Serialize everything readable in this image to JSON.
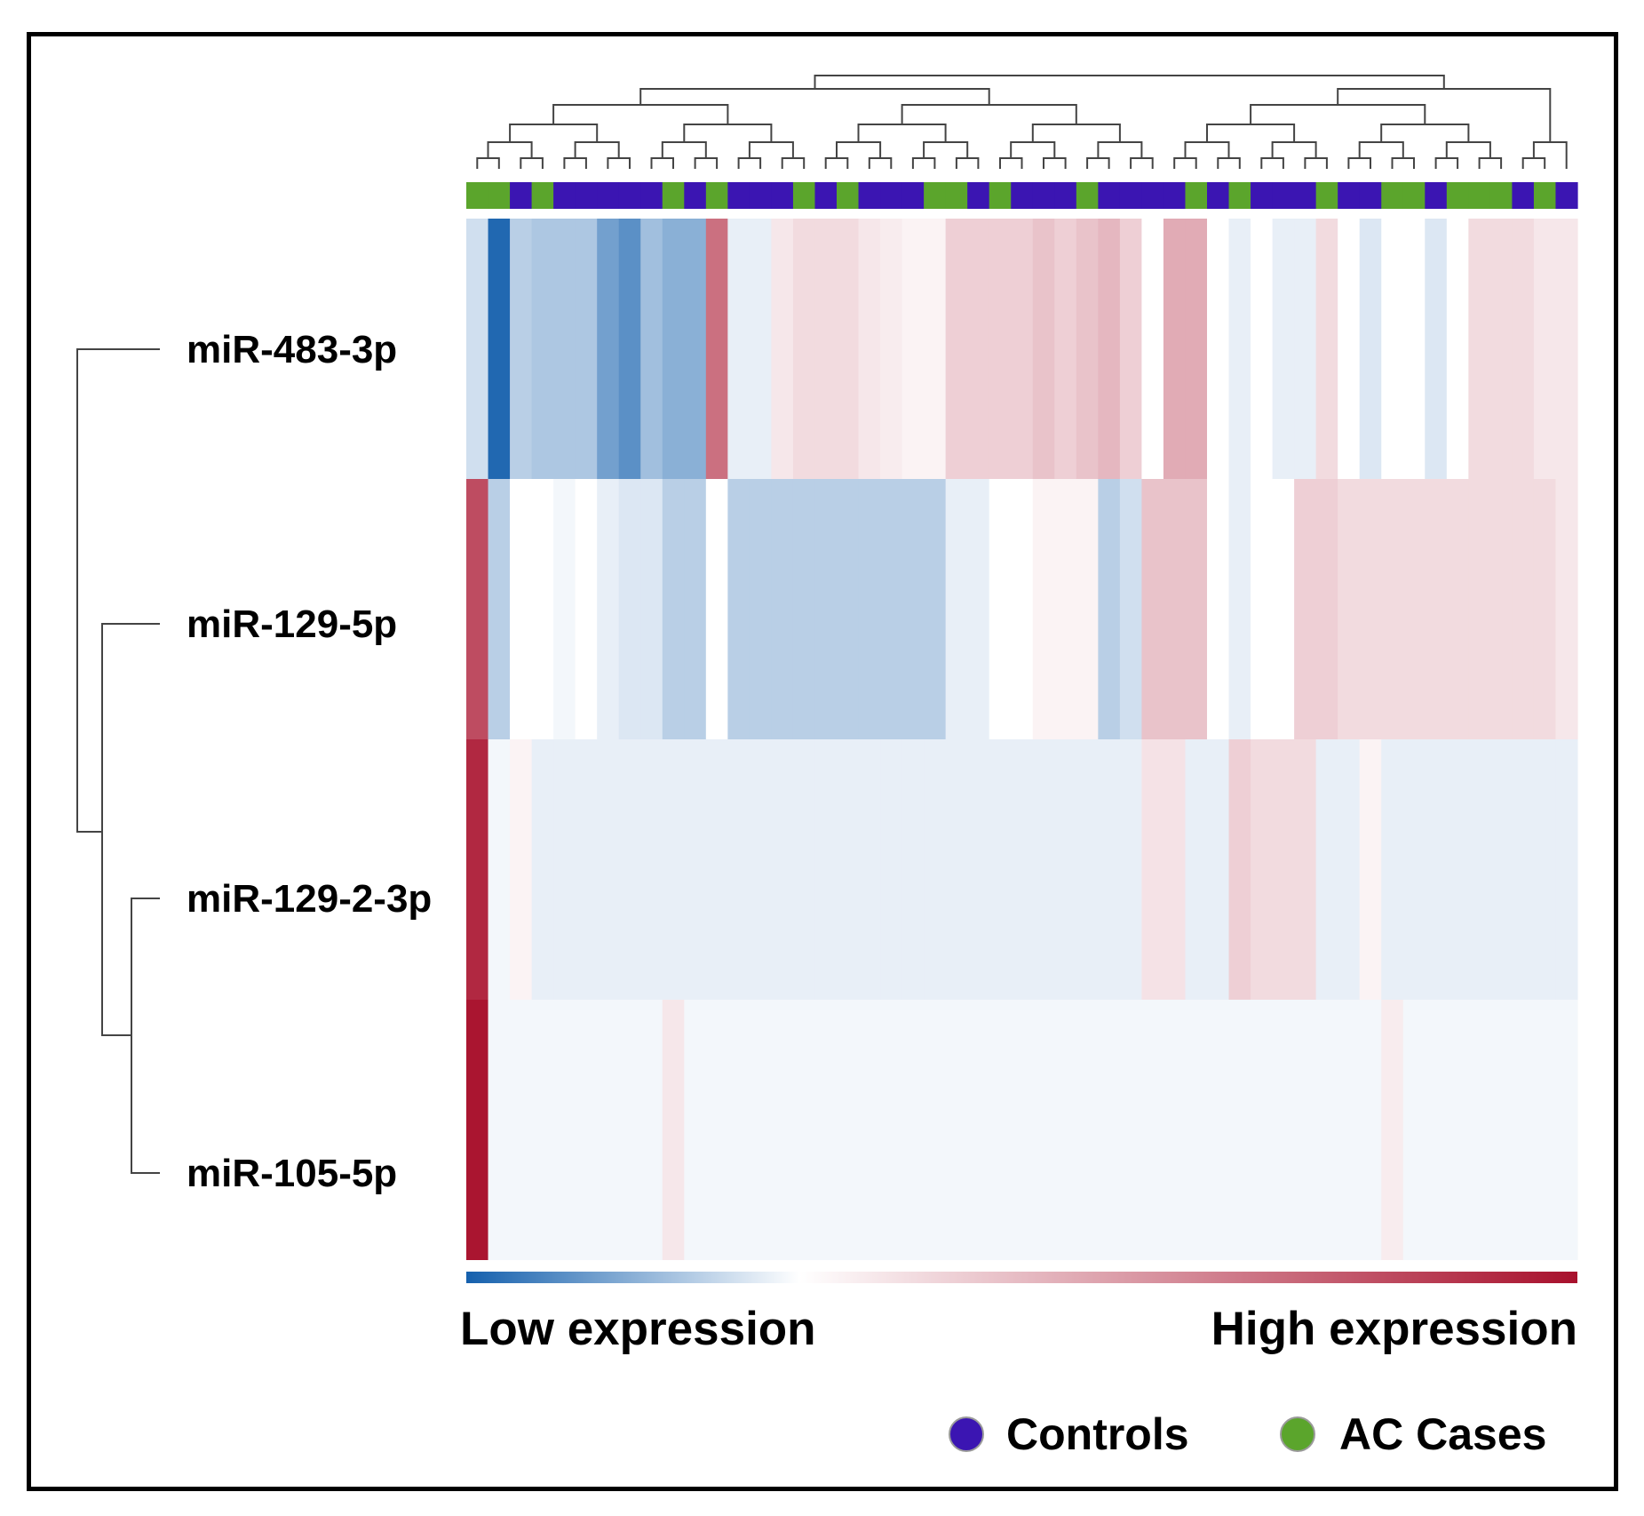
{
  "chart_data": {
    "type": "heatmap",
    "title": "",
    "rows": [
      "miR-483-3p",
      "miR-129-5p",
      "miR-129-2-3p",
      "miR-105-5p"
    ],
    "row_dendrogram": "miR-483-3p joins the cluster ((miR-105-5p, miR-129-2-3p), miR-129-5p)",
    "column_dendrogram": "hierarchical clustering of 51 samples",
    "column_groups": [
      "AC Cases",
      "AC Cases",
      "Controls",
      "AC Cases",
      "Controls",
      "Controls",
      "Controls",
      "Controls",
      "Controls",
      "AC Cases",
      "Controls",
      "AC Cases",
      "Controls",
      "Controls",
      "Controls",
      "AC Cases",
      "Controls",
      "AC Cases",
      "Controls",
      "Controls",
      "Controls",
      "AC Cases",
      "AC Cases",
      "Controls",
      "AC Cases",
      "Controls",
      "Controls",
      "Controls",
      "AC Cases",
      "Controls",
      "Controls",
      "Controls",
      "Controls",
      "AC Cases",
      "Controls",
      "AC Cases",
      "Controls",
      "Controls",
      "Controls",
      "AC Cases",
      "Controls",
      "Controls",
      "AC Cases",
      "AC Cases",
      "Controls",
      "AC Cases",
      "AC Cases",
      "AC Cases",
      "Controls",
      "AC Cases",
      "Controls"
    ],
    "value_scale": [
      -1,
      1
    ],
    "values": [
      [
        -0.2,
        -0.95,
        -0.3,
        -0.35,
        -0.35,
        -0.35,
        -0.6,
        -0.7,
        -0.4,
        -0.5,
        -0.5,
        0.6,
        -0.1,
        -0.1,
        0.1,
        0.15,
        0.15,
        0.15,
        0.1,
        0.08,
        0.05,
        0.05,
        0.2,
        0.2,
        0.2,
        0.2,
        0.25,
        0.2,
        0.25,
        0.3,
        0.2,
        0.0,
        0.35,
        0.35,
        0.0,
        -0.1,
        0.0,
        -0.1,
        -0.1,
        0.15,
        0.0,
        -0.15,
        0.0,
        0.0,
        -0.15,
        0.0,
        0.15,
        0.15,
        0.15,
        0.1,
        0.1
      ],
      [
        0.75,
        -0.3,
        0.0,
        0.0,
        -0.05,
        0.0,
        -0.1,
        -0.15,
        -0.15,
        -0.3,
        -0.3,
        0.0,
        -0.3,
        -0.3,
        -0.3,
        -0.3,
        -0.3,
        -0.3,
        -0.3,
        -0.3,
        -0.3,
        -0.3,
        -0.1,
        -0.1,
        0.0,
        0.0,
        0.05,
        0.05,
        0.05,
        -0.3,
        -0.2,
        0.25,
        0.25,
        0.25,
        0.0,
        -0.1,
        0.0,
        0.0,
        0.2,
        0.2,
        0.15,
        0.15,
        0.15,
        0.15,
        0.15,
        0.15,
        0.15,
        0.15,
        0.15,
        0.15,
        0.1
      ],
      [
        0.9,
        -0.05,
        0.05,
        -0.1,
        -0.1,
        -0.1,
        -0.1,
        -0.1,
        -0.1,
        -0.1,
        -0.1,
        -0.1,
        -0.1,
        -0.1,
        -0.1,
        -0.1,
        -0.1,
        -0.1,
        -0.1,
        -0.1,
        -0.1,
        -0.1,
        -0.1,
        -0.1,
        -0.1,
        -0.1,
        -0.1,
        -0.1,
        -0.1,
        -0.1,
        -0.1,
        0.12,
        0.12,
        -0.1,
        -0.1,
        0.2,
        0.15,
        0.15,
        0.15,
        -0.1,
        -0.1,
        0.05,
        -0.1,
        -0.1,
        -0.1,
        -0.1,
        -0.1,
        -0.1,
        -0.1,
        -0.1,
        -0.1
      ],
      [
        0.98,
        -0.05,
        -0.05,
        -0.05,
        -0.05,
        -0.05,
        -0.05,
        -0.05,
        -0.05,
        0.1,
        -0.05,
        -0.05,
        -0.05,
        -0.05,
        -0.05,
        -0.05,
        -0.05,
        -0.05,
        -0.05,
        -0.05,
        -0.05,
        -0.05,
        -0.05,
        -0.05,
        -0.05,
        -0.05,
        -0.05,
        -0.05,
        -0.05,
        -0.05,
        -0.05,
        -0.05,
        -0.05,
        -0.05,
        -0.05,
        -0.05,
        -0.05,
        -0.05,
        -0.05,
        -0.05,
        -0.05,
        -0.05,
        0.08,
        -0.05,
        -0.05,
        -0.05,
        -0.05,
        -0.05,
        -0.05,
        -0.05,
        -0.05
      ]
    ],
    "colorbar": {
      "low_label": "Low expression",
      "high_label": "High expression"
    },
    "colors": {
      "low": "#1560ad",
      "mid": "#ffffff",
      "high": "#a8102c",
      "controls": "#3b15b2",
      "cases": "#5ba52c",
      "dendrogram": "#444444"
    },
    "legend": [
      {
        "name": "Controls",
        "color": "#3b15b2"
      },
      {
        "name": "AC Cases",
        "color": "#5ba52c"
      }
    ],
    "legend_position": "bottom-right"
  }
}
